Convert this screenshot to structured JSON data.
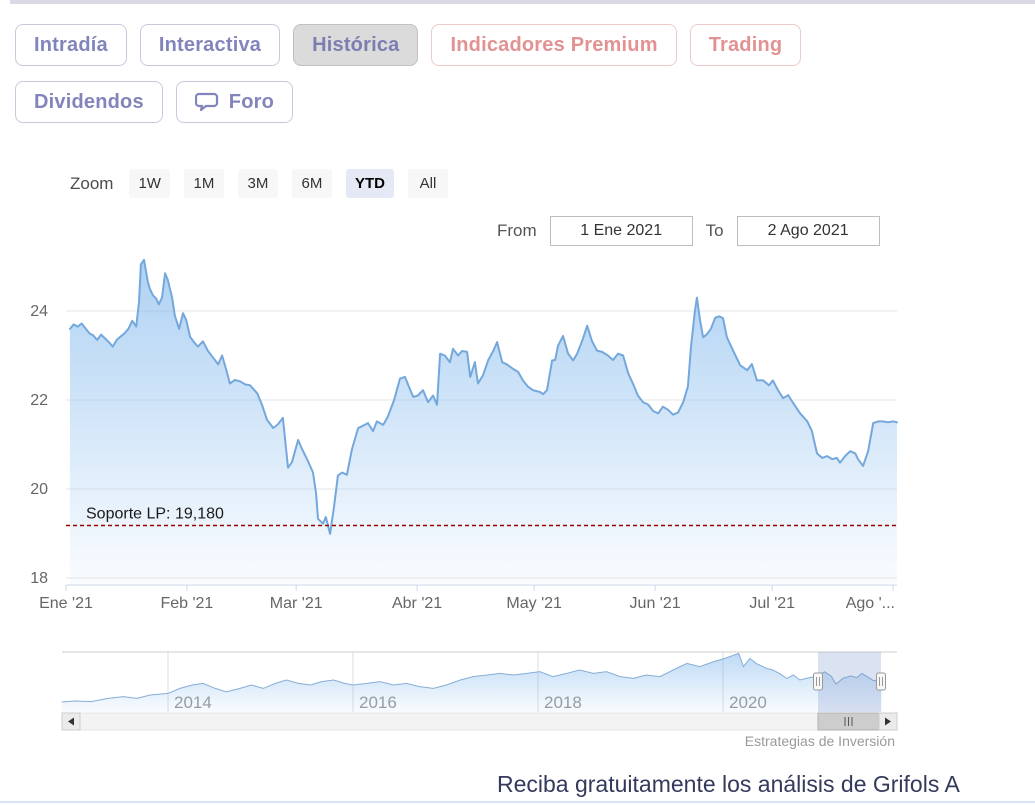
{
  "header": {
    "tabs_row1": [
      {
        "label": "Intradía",
        "active": false,
        "variant": "default"
      },
      {
        "label": "Interactiva",
        "active": false,
        "variant": "default"
      },
      {
        "label": "Histórica",
        "active": true,
        "variant": "default"
      },
      {
        "label": "Indicadores Premium",
        "active": false,
        "variant": "premium"
      },
      {
        "label": "Trading",
        "active": false,
        "variant": "premium"
      }
    ],
    "tabs_row2": [
      {
        "label": "Dividendos",
        "active": false,
        "variant": "default"
      },
      {
        "label": "Foro",
        "active": false,
        "variant": "default",
        "icon": "chat-bubble-icon"
      }
    ]
  },
  "range_selector": {
    "zoom_label": "Zoom",
    "buttons": [
      "1W",
      "1M",
      "3M",
      "6M",
      "YTD",
      "All"
    ],
    "active_button": "YTD",
    "from_label": "From",
    "from_value": "1 Ene 2021",
    "to_label": "To",
    "to_value": "2 Ago 2021"
  },
  "chart_data": {
    "type": "area",
    "title": "",
    "xlabel": "",
    "ylabel": "",
    "grid": "horizontal",
    "colors": {
      "line": "#74a8dc",
      "fill": "#7cb5ec",
      "gridline": "#e6e6e6",
      "axis_line": "#ccd6eb",
      "axis_label": "#666666",
      "support_line": "#990000",
      "nav_mask": "#718cc7"
    },
    "y_axis": {
      "min": 18,
      "max": 25.26,
      "ticks": [
        24,
        22,
        20,
        18
      ]
    },
    "x_axis": {
      "range_days": 213,
      "ticks": [
        {
          "day": 0,
          "label": "Ene '21"
        },
        {
          "day": 31,
          "label": "Feb '21"
        },
        {
          "day": 59,
          "label": "Mar '21"
        },
        {
          "day": 90,
          "label": "Abr '21"
        },
        {
          "day": 120,
          "label": "May '21"
        },
        {
          "day": 151,
          "label": "Jun '21"
        },
        {
          "day": 181,
          "label": "Jul '21"
        },
        {
          "day": 212,
          "label": "Ago '..."
        }
      ]
    },
    "series": [
      {
        "name": "Grifols A",
        "points": [
          [
            1,
            23.6
          ],
          [
            2,
            23.7
          ],
          [
            3,
            23.65
          ],
          [
            4,
            23.72
          ],
          [
            6,
            23.5
          ],
          [
            7,
            23.45
          ],
          [
            8,
            23.35
          ],
          [
            9,
            23.47
          ],
          [
            11,
            23.3
          ],
          [
            12,
            23.2
          ],
          [
            13,
            23.35
          ],
          [
            15,
            23.5
          ],
          [
            16,
            23.6
          ],
          [
            17,
            23.78
          ],
          [
            18,
            23.65
          ],
          [
            18.7,
            24.2
          ],
          [
            19.2,
            25.05
          ],
          [
            20,
            25.15
          ],
          [
            21,
            24.65
          ],
          [
            21.5,
            24.5
          ],
          [
            22.3,
            24.35
          ],
          [
            23.1,
            24.28
          ],
          [
            23.8,
            24.15
          ],
          [
            24.6,
            24.3
          ],
          [
            25.4,
            24.85
          ],
          [
            26.1,
            24.7
          ],
          [
            27.2,
            24.3
          ],
          [
            27.9,
            23.9
          ],
          [
            29,
            23.6
          ],
          [
            30,
            23.95
          ],
          [
            30.8,
            23.8
          ],
          [
            31.8,
            23.42
          ],
          [
            32.8,
            23.3
          ],
          [
            33.8,
            23.2
          ],
          [
            35.1,
            23.32
          ],
          [
            36.4,
            23.1
          ],
          [
            37.7,
            22.95
          ],
          [
            39,
            22.8
          ],
          [
            40,
            23.0
          ],
          [
            41,
            22.7
          ],
          [
            42,
            22.37
          ],
          [
            43.3,
            22.45
          ],
          [
            44.6,
            22.42
          ],
          [
            45.9,
            22.35
          ],
          [
            47.2,
            22.33
          ],
          [
            49,
            22.15
          ],
          [
            50.2,
            21.9
          ],
          [
            51.5,
            21.56
          ],
          [
            53.1,
            21.37
          ],
          [
            54.3,
            21.45
          ],
          [
            55.6,
            21.6
          ],
          [
            56.9,
            20.48
          ],
          [
            57.9,
            20.6
          ],
          [
            59.5,
            21.1
          ],
          [
            60.5,
            20.9
          ],
          [
            61.8,
            20.67
          ],
          [
            63.3,
            20.37
          ],
          [
            64.1,
            19.9
          ],
          [
            64.6,
            19.33
          ],
          [
            65.9,
            19.22
          ],
          [
            66.6,
            19.37
          ],
          [
            67.7,
            18.99
          ],
          [
            68.7,
            19.6
          ],
          [
            69.7,
            20.3
          ],
          [
            70.8,
            20.37
          ],
          [
            72,
            20.32
          ],
          [
            73.3,
            20.9
          ],
          [
            74.9,
            21.37
          ],
          [
            76.1,
            21.42
          ],
          [
            77.4,
            21.48
          ],
          [
            78.7,
            21.3
          ],
          [
            79.7,
            21.52
          ],
          [
            81.3,
            21.44
          ],
          [
            82.5,
            21.63
          ],
          [
            84.1,
            22.0
          ],
          [
            85.6,
            22.48
          ],
          [
            86.9,
            22.52
          ],
          [
            87.9,
            22.3
          ],
          [
            89,
            22.07
          ],
          [
            90.2,
            22.1
          ],
          [
            91.5,
            22.22
          ],
          [
            92.8,
            21.95
          ],
          [
            94.1,
            22.1
          ],
          [
            95.1,
            21.89
          ],
          [
            95.9,
            23.04
          ],
          [
            97.1,
            23.0
          ],
          [
            98.4,
            22.85
          ],
          [
            99.2,
            23.15
          ],
          [
            100.5,
            23.0
          ],
          [
            101.5,
            23.1
          ],
          [
            102.8,
            23.08
          ],
          [
            103.6,
            22.52
          ],
          [
            104.8,
            22.85
          ],
          [
            105.6,
            22.37
          ],
          [
            106.9,
            22.56
          ],
          [
            108.2,
            22.89
          ],
          [
            109.5,
            23.1
          ],
          [
            110.5,
            23.3
          ],
          [
            111.8,
            22.85
          ],
          [
            113,
            22.8
          ],
          [
            114.6,
            22.7
          ],
          [
            115.9,
            22.63
          ],
          [
            117.1,
            22.44
          ],
          [
            118.4,
            22.3
          ],
          [
            119.7,
            22.22
          ],
          [
            121.5,
            22.18
          ],
          [
            122.3,
            22.13
          ],
          [
            123.3,
            22.22
          ],
          [
            124.6,
            22.89
          ],
          [
            125.4,
            22.9
          ],
          [
            126.1,
            23.22
          ],
          [
            127.4,
            23.44
          ],
          [
            128.7,
            23.04
          ],
          [
            130,
            22.89
          ],
          [
            131,
            23.04
          ],
          [
            132.3,
            23.33
          ],
          [
            133.6,
            23.67
          ],
          [
            134.8,
            23.33
          ],
          [
            136.1,
            23.11
          ],
          [
            137.4,
            23.08
          ],
          [
            138.9,
            23.0
          ],
          [
            140.2,
            22.9
          ],
          [
            141.5,
            23.04
          ],
          [
            142.8,
            23.0
          ],
          [
            144.1,
            22.6
          ],
          [
            145.4,
            22.35
          ],
          [
            146.6,
            22.1
          ],
          [
            147.9,
            21.95
          ],
          [
            149.2,
            21.9
          ],
          [
            150.5,
            21.75
          ],
          [
            151.8,
            21.7
          ],
          [
            153,
            21.85
          ],
          [
            154.3,
            21.78
          ],
          [
            155.6,
            21.67
          ],
          [
            156.9,
            21.72
          ],
          [
            158.2,
            21.95
          ],
          [
            159.4,
            22.3
          ],
          [
            160.2,
            23.2
          ],
          [
            161.2,
            24.0
          ],
          [
            161.7,
            24.3
          ],
          [
            162.5,
            23.8
          ],
          [
            163.3,
            23.41
          ],
          [
            164.3,
            23.48
          ],
          [
            165.3,
            23.6
          ],
          [
            166.4,
            23.85
          ],
          [
            167.4,
            23.88
          ],
          [
            168.4,
            23.84
          ],
          [
            169.4,
            23.41
          ],
          [
            171,
            23.11
          ],
          [
            172.8,
            22.78
          ],
          [
            174.6,
            22.67
          ],
          [
            175.8,
            22.81
          ],
          [
            177.1,
            22.44
          ],
          [
            178.7,
            22.44
          ],
          [
            180.2,
            22.33
          ],
          [
            181.2,
            22.44
          ],
          [
            182.5,
            22.22
          ],
          [
            183.8,
            22.04
          ],
          [
            185.1,
            22.11
          ],
          [
            186.4,
            21.93
          ],
          [
            188.2,
            21.7
          ],
          [
            190,
            21.52
          ],
          [
            191.2,
            21.3
          ],
          [
            192.5,
            20.8
          ],
          [
            193.8,
            20.7
          ],
          [
            195.1,
            20.74
          ],
          [
            196.4,
            20.67
          ],
          [
            197.6,
            20.7
          ],
          [
            198.4,
            20.59
          ],
          [
            199.7,
            20.74
          ],
          [
            201,
            20.85
          ],
          [
            202.3,
            20.8
          ],
          [
            203,
            20.67
          ],
          [
            204.3,
            20.52
          ],
          [
            205.6,
            20.85
          ],
          [
            206.9,
            21.48
          ],
          [
            208.2,
            21.52
          ],
          [
            209.4,
            21.52
          ],
          [
            210.7,
            21.5
          ],
          [
            212,
            21.52
          ],
          [
            213,
            21.5
          ]
        ]
      }
    ],
    "annotations": [
      {
        "type": "hline",
        "value": 19.18,
        "label": "Soporte LP: 19,180",
        "style": "dashed",
        "color": "#990000"
      }
    ],
    "navigator": {
      "year_ticks": [
        2014,
        2016,
        2018,
        2020
      ],
      "selected_from": "1 Ene 2021",
      "selected_to": "2 Ago 2021",
      "points": [
        [
          2012.85,
          10.0
        ],
        [
          2013.0,
          10.5
        ],
        [
          2013.17,
          10.2
        ],
        [
          2013.35,
          11.8
        ],
        [
          2013.52,
          12.7
        ],
        [
          2013.66,
          11.8
        ],
        [
          2013.81,
          13.5
        ],
        [
          2014.0,
          14.3
        ],
        [
          2014.13,
          16.8
        ],
        [
          2014.26,
          18.5
        ],
        [
          2014.38,
          19.3
        ],
        [
          2014.51,
          16.8
        ],
        [
          2014.63,
          15.1
        ],
        [
          2014.78,
          16.8
        ],
        [
          2014.9,
          18.5
        ],
        [
          2015.03,
          16.8
        ],
        [
          2015.16,
          19.3
        ],
        [
          2015.28,
          21.0
        ],
        [
          2015.41,
          19.3
        ],
        [
          2015.54,
          18.5
        ],
        [
          2015.66,
          20.2
        ],
        [
          2015.79,
          21.0
        ],
        [
          2015.91,
          19.3
        ],
        [
          2016.0,
          18.5
        ],
        [
          2016.15,
          19.3
        ],
        [
          2016.29,
          20.2
        ],
        [
          2016.44,
          18.5
        ],
        [
          2016.58,
          19.3
        ],
        [
          2016.72,
          17.7
        ],
        [
          2016.87,
          16.8
        ],
        [
          2017.01,
          18.5
        ],
        [
          2017.16,
          21.0
        ],
        [
          2017.3,
          22.7
        ],
        [
          2017.45,
          23.5
        ],
        [
          2017.59,
          24.3
        ],
        [
          2017.73,
          23.5
        ],
        [
          2017.88,
          24.3
        ],
        [
          2018.02,
          25.2
        ],
        [
          2018.16,
          22.7
        ],
        [
          2018.31,
          24.3
        ],
        [
          2018.45,
          26.0
        ],
        [
          2018.6,
          24.3
        ],
        [
          2018.74,
          25.2
        ],
        [
          2018.89,
          22.7
        ],
        [
          2019.03,
          21.8
        ],
        [
          2019.17,
          23.5
        ],
        [
          2019.32,
          22.7
        ],
        [
          2019.46,
          26.0
        ],
        [
          2019.61,
          29.3
        ],
        [
          2019.75,
          27.7
        ],
        [
          2019.9,
          30.2
        ],
        [
          2020.02,
          31.8
        ],
        [
          2020.17,
          34.3
        ],
        [
          2020.22,
          27.7
        ],
        [
          2020.29,
          31.8
        ],
        [
          2020.36,
          29.3
        ],
        [
          2020.47,
          26.8
        ],
        [
          2020.54,
          26.0
        ],
        [
          2020.61,
          24.3
        ],
        [
          2020.69,
          21.8
        ],
        [
          2020.76,
          23.5
        ],
        [
          2020.83,
          21.0
        ],
        [
          2020.9,
          21.8
        ],
        [
          2020.97,
          22.5
        ],
        [
          2021.03,
          23.6
        ],
        [
          2021.1,
          25.1
        ],
        [
          2021.17,
          22.9
        ],
        [
          2021.22,
          19.0
        ],
        [
          2021.3,
          21.9
        ],
        [
          2021.38,
          23.0
        ],
        [
          2021.45,
          22.2
        ],
        [
          2021.5,
          24.3
        ],
        [
          2021.57,
          22.4
        ],
        [
          2021.63,
          20.6
        ],
        [
          2021.72,
          21.5
        ]
      ]
    }
  },
  "credits": {
    "label": "Estrategias de Inversión"
  },
  "footer": {
    "marquee": "Reciba gratuitamente los análisis de Grifols A"
  }
}
